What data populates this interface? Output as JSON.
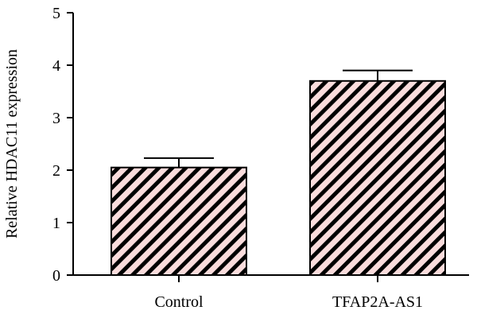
{
  "chart_data": {
    "type": "bar",
    "title": "",
    "xlabel": "",
    "ylabel": "Relative HDAC11 expression",
    "ylim": [
      0,
      5
    ],
    "yticks": [
      0,
      1,
      2,
      3,
      4,
      5
    ],
    "categories": [
      "Control",
      "TFAP2A-AS1"
    ],
    "values": [
      2.05,
      3.7
    ],
    "error": [
      0.18,
      0.2
    ],
    "grid": false,
    "legend": "none",
    "bar_fill": "#fadcdc",
    "bar_hatch": "#000000",
    "bar_pattern": "diagonal-stripes"
  }
}
